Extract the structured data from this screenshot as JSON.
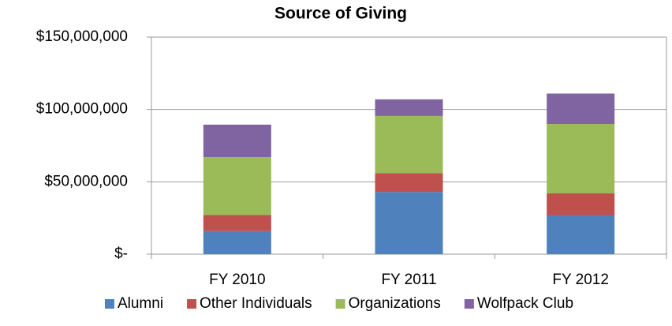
{
  "chart_data": {
    "type": "stacked_bar",
    "title": "Source of Giving",
    "categories": [
      "FY 2010",
      "FY 2011",
      "FY 2012"
    ],
    "series": [
      {
        "name": "Alumni",
        "color": "#4f81bd",
        "values": [
          16000000,
          43000000,
          27000000
        ]
      },
      {
        "name": "Other Individuals",
        "color": "#c0504d",
        "values": [
          11000000,
          13000000,
          15000000
        ]
      },
      {
        "name": "Organizations",
        "color": "#9bbb59",
        "values": [
          40000000,
          39500000,
          48000000
        ]
      },
      {
        "name": "Wolfpack Club",
        "color": "#8064a2",
        "values": [
          22500000,
          11500000,
          21000000
        ]
      }
    ],
    "ylim": [
      0,
      150000000
    ],
    "yticks": [
      {
        "value": 0,
        "label": "$-"
      },
      {
        "value": 50000000,
        "label": "$50,000,000"
      },
      {
        "value": 100000000,
        "label": "$100,000,000"
      },
      {
        "value": 150000000,
        "label": "$150,000,000"
      }
    ],
    "grid": true,
    "legend": "bottom"
  }
}
